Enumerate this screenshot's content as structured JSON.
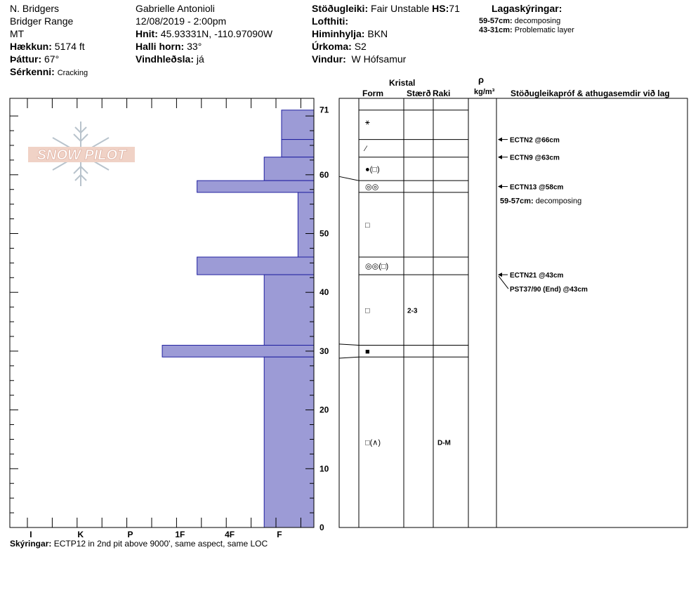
{
  "header": {
    "observer": "N. Bridgers",
    "location": "Bridger Range",
    "state": "MT",
    "elevation_label": "Hækkun:",
    "elevation_value": "5174 ft",
    "aspect_label": "Þáttur:",
    "aspect_value": "67°",
    "features_label": "Sérkenni:",
    "features_value": "Cracking",
    "name": "Gabrielle Antonioli",
    "datetime": "12/08/2019 - 2:00pm",
    "coords_label": "Hnit:",
    "coords_value": "45.93331N, -110.97090W",
    "slope_label": "Halli horn:",
    "slope_value": "33°",
    "wind_loading_label": "Vindhleðsla:",
    "wind_loading_value": "já",
    "stability_label": "Stöðugleiki:",
    "stability_value": "Fair Unstable",
    "hs_label": "HS:",
    "hs_value": "71",
    "airtemp_label": "Lofthiti:",
    "sky_label": "Himinhylja:",
    "sky_value": "BKN",
    "precip_label": "Úrkoma:",
    "precip_value": "S2",
    "wind_label": "Vindur:",
    "wind_value": "W Hófsamur",
    "legend_title": "Lagaskýringar:",
    "legend": [
      {
        "range": "59-57cm:",
        "text": "decomposing"
      },
      {
        "range": "43-31cm:",
        "text": "Problematic layer"
      }
    ]
  },
  "logo_text": "SNOW PILOT",
  "table_headers": {
    "kristal": "Kristal",
    "form": "Form",
    "size": "Stærð",
    "moisture": "Raki",
    "rho": "ρ",
    "density_unit": "kg/m³",
    "tests": "Stöðugleikapróf & athugasemdir við lag"
  },
  "footer": {
    "label": "Skýringar:",
    "text": "ECTP12 in 2nd pit above 9000', same aspect, same LOC"
  },
  "chart_data": {
    "type": "bar",
    "orientation": "horizontal",
    "description": "Snow pit hand hardness profile",
    "y_axis": {
      "range": [
        0,
        71
      ],
      "tick_labels": [
        "0",
        "10",
        "20",
        "30",
        "40",
        "50",
        "60",
        "71"
      ]
    },
    "x_axis": {
      "categories": [
        "I",
        "K",
        "P",
        "1F",
        "4F",
        "F"
      ],
      "reversed": true
    },
    "hardness_scale": {
      "F": 1,
      "4F": 2,
      "1F": 3,
      "P": 4,
      "K": 5,
      "I": 6
    },
    "layers": [
      {
        "top": 71,
        "bottom": 66,
        "hardness": "F-",
        "hardness_value": 0.65
      },
      {
        "top": 66,
        "bottom": 63,
        "hardness": "F-",
        "hardness_value": 0.65
      },
      {
        "top": 63,
        "bottom": 59,
        "hardness": "F+",
        "hardness_value": 1.0
      },
      {
        "top": 59,
        "bottom": 57,
        "hardness": "1F-",
        "hardness_value": 2.35
      },
      {
        "top": 57,
        "bottom": 46,
        "hardness": "F-",
        "hardness_value": 0.32
      },
      {
        "top": 46,
        "bottom": 43,
        "hardness": "1F-",
        "hardness_value": 2.35
      },
      {
        "top": 43,
        "bottom": 31,
        "hardness": "F+",
        "hardness_value": 1.0
      },
      {
        "top": 31,
        "bottom": 29,
        "hardness": "P-",
        "hardness_value": 3.05
      },
      {
        "top": 29,
        "bottom": 0,
        "hardness": "F+",
        "hardness_value": 1.0
      }
    ],
    "crystals": [
      {
        "height": 69,
        "form": "⚹",
        "size": "",
        "moisture": ""
      },
      {
        "height": 64.5,
        "form": "⁄",
        "size": "",
        "moisture": ""
      },
      {
        "height": 61,
        "form": "●(□)",
        "size": "",
        "moisture": ""
      },
      {
        "height": 58,
        "form": "◎◎",
        "size": "",
        "moisture": ""
      },
      {
        "height": 51.5,
        "form": "□",
        "size": "",
        "moisture": ""
      },
      {
        "height": 44.5,
        "form": "◎◎(□)",
        "size": "",
        "moisture": ""
      },
      {
        "height": 37,
        "form": "□",
        "size": "2-3",
        "moisture": ""
      },
      {
        "height": 30,
        "form": "■",
        "size": "",
        "moisture": ""
      },
      {
        "height": 14.5,
        "form": "□(∧)",
        "size": "",
        "moisture": "D-M"
      }
    ],
    "tests": [
      {
        "height": 66,
        "text": "ECTN2 @66cm",
        "arrow": true
      },
      {
        "height": 63,
        "text": "ECTN9 @63cm",
        "arrow": true
      },
      {
        "height": 58,
        "text": "ECTN13 @58cm",
        "arrow": true
      },
      {
        "height": 55.6,
        "text": "59-57cm:",
        "text2": "decomposing",
        "arrow": false
      },
      {
        "height": 43,
        "text": "ECTN21 @43cm",
        "arrow": true
      },
      {
        "height": 40.6,
        "text": "PST37/90 (End) @43cm",
        "arrow": false
      }
    ]
  }
}
